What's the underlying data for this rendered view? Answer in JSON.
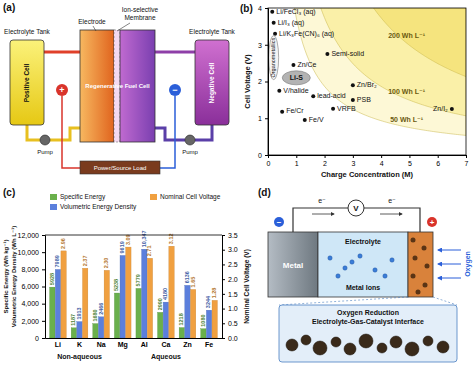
{
  "diagram_a": {
    "label": "(a)",
    "left_tank": "Electrolyte Tank",
    "right_tank": "Electrolyte Tank",
    "electrode": "Electrode",
    "membrane": [
      "Ion-selective",
      "Membrane"
    ],
    "cell": "Regenerative Fuel Cell",
    "positive": "Positive Cell",
    "negative": "Negative Cell",
    "plus": "+",
    "minus": "−",
    "pumps": [
      "Pump",
      "Pump"
    ],
    "load": "Power/Source Load"
  },
  "chart_data": [
    {
      "type": "scatter",
      "title": "(b)",
      "x_label": "Charge Concentration (M)",
      "y_label": "Cell Voltage (V)",
      "xlim": [
        0,
        7
      ],
      "ylim": [
        0,
        4
      ],
      "xticks": [
        0,
        1,
        2,
        3,
        4,
        5,
        6,
        7
      ],
      "yticks": [
        0,
        1,
        2,
        3,
        4
      ],
      "grid": false,
      "series": [
        {
          "marker": "circle",
          "color": "#111111",
          "x": [
            0.15,
            0.2,
            0.25,
            2.1,
            0.9,
            3.0,
            1.6,
            0.4,
            3.0,
            2.3,
            0.5,
            1.3,
            6.5
          ],
          "values": [
            3.9,
            3.6,
            3.3,
            2.75,
            2.45,
            1.9,
            1.6,
            1.75,
            1.5,
            1.26,
            1.18,
            0.95,
            1.25
          ],
          "point_labels": [
            "Li/FeCl₃ (aq)",
            "Li/I₃ (aq)",
            "Li/K₃Fe(CN)₆ (aq)",
            "Semi-solid",
            "Zn/Ce",
            "Zn/Br₂",
            "lead-acid",
            "V/halide",
            "PSB",
            "VRFB",
            "Fe/Cr",
            "Fe/V",
            "Zn/I₂"
          ]
        },
        {
          "marker": "vertical-ellipse",
          "color": "#f4f4f4",
          "x": [
            0.2
          ],
          "values": [
            2.65
          ],
          "point_labels": [
            "Organometallics"
          ]
        },
        {
          "marker": "ellipse",
          "color": "#b3b3b3",
          "x": [
            1.0
          ],
          "values": [
            2.1
          ],
          "point_labels": [
            "Li-S"
          ]
        }
      ],
      "energy_density_contours": {
        "values": [
          50,
          100,
          200
        ],
        "labels": [
          "50 Wh L⁻¹",
          "100 Wh L⁻¹",
          "200 Wh L⁻¹"
        ],
        "colors": [
          "#fdf8d6",
          "#faf0a8",
          "#f5e47e"
        ]
      }
    },
    {
      "type": "bar",
      "title": "(c)",
      "categories": [
        "Li",
        "K",
        "Na",
        "Mg",
        "Al",
        "Ca",
        "Zn",
        "Fe"
      ],
      "category_groups": [
        {
          "label": "Non-aqueous",
          "count": 3
        },
        {
          "label": "Aqueous",
          "count": 5
        }
      ],
      "y_label": [
        "Specific Energy (Wh kg⁻¹)",
        "Volumetric Energy Density (Wh L⁻¹)"
      ],
      "y2_label": "Nominal Cell Voltage (V)",
      "ylim": [
        0,
        12000
      ],
      "yticks": [
        0,
        {
          "value": 2000,
          "label": "2,000"
        },
        {
          "value": 4000,
          "label": "4,000"
        },
        {
          "value": 6000,
          "label": "6,000"
        },
        {
          "value": 8000,
          "label": "8,000"
        },
        {
          "value": 10000,
          "label": "10,000"
        },
        {
          "value": 12000,
          "label": "12,000"
        }
      ],
      "y2lim": [
        0,
        3.5
      ],
      "y2ticks": [
        {
          "value": 0,
          "label": "0.0"
        },
        0.5,
        {
          "value": 1,
          "label": "1.0"
        },
        1.5,
        {
          "value": 2,
          "label": "2.0"
        },
        2.5,
        {
          "value": 3,
          "label": "3.0"
        },
        3.5
      ],
      "legend": "top",
      "data_labels": true,
      "grid": false,
      "series": [
        {
          "name": "Specific Energy",
          "color": "#6ab04c",
          "values": [
            5928,
            1187,
            1680,
            5238,
            5779,
            2990,
            1218,
            1080
          ]
        },
        {
          "name": "Volumetric Energy Density",
          "color": "#5b7fdc",
          "values": [
            7989,
            1913,
            2466,
            9619,
            10347,
            4180,
            6136,
            3244
          ],
          "value_labels": [
            "7989",
            "1913",
            "2466",
            "9619",
            "10,347",
            "4180",
            "6136",
            "3244"
          ]
        },
        {
          "name": "Nominal Cell Voltage",
          "color": "#f0a040",
          "axis": "y2",
          "values": [
            2.96,
            2.37,
            2.3,
            3.09,
            2.71,
            3.12,
            1.65,
            1.28
          ],
          "value_labels": [
            "2.96",
            "2.37",
            "2.30",
            "3.09",
            "2.71",
            "3.12",
            "1.65",
            "1.28"
          ]
        }
      ]
    }
  ],
  "diagram_d": {
    "label": "(d)",
    "voltmeter": "V",
    "electrons": [
      "e⁻",
      "e⁻"
    ],
    "minus": "−",
    "plus": "+",
    "metal": "Metal",
    "electrolyte": "Electrolyte",
    "metal_ions": "Metal Ions",
    "oxygen": "Oxygen",
    "inset": [
      "Oxygen Reduction",
      "Electrolyte-Gas-Catalyst Interface"
    ]
  }
}
